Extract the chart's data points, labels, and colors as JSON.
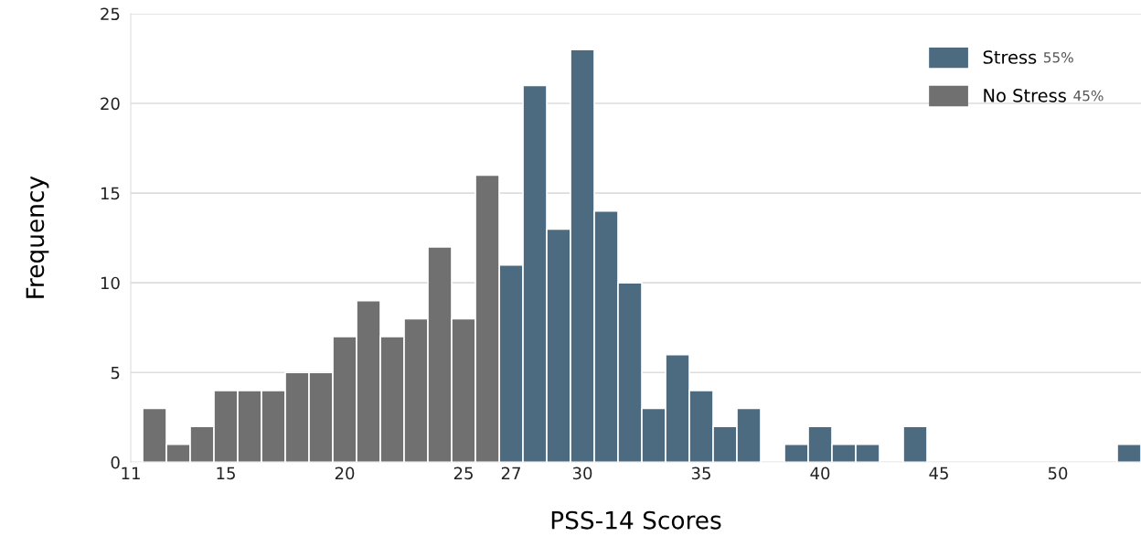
{
  "chart_data": {
    "type": "histogram",
    "xlabel": "PSS-14 Scores",
    "ylabel": "Frequency",
    "bins": [
      11.5,
      12.5,
      13.5,
      14.5,
      15.5,
      16.5,
      17.5,
      18.5,
      19.5,
      20.5,
      21.5,
      22.5,
      23.5,
      24.5,
      25.5,
      26.5,
      27.5,
      28.5,
      29.5,
      30.5,
      31.5,
      32.5,
      33.5,
      34.5,
      35.5,
      36.5,
      37.5,
      38.5,
      39.5,
      40.5,
      41.5,
      42.5,
      43.5,
      44.5,
      45.5,
      46.5,
      47.5,
      48.5,
      49.5,
      50.5,
      51.5,
      52.5,
      53.5
    ],
    "series": [
      {
        "name": "Stress",
        "color": "#4d6b80",
        "values": [
          null,
          null,
          null,
          null,
          null,
          null,
          null,
          null,
          null,
          null,
          null,
          null,
          null,
          null,
          null,
          11,
          21,
          13,
          23,
          14,
          10,
          3,
          6,
          4,
          2,
          3,
          0,
          1,
          2,
          1,
          1,
          0,
          2,
          0,
          0,
          0,
          0,
          0,
          0,
          0,
          0,
          1
        ]
      },
      {
        "name": "No Stress",
        "color": "#707070",
        "values": [
          3,
          1,
          2,
          4,
          4,
          4,
          5,
          5,
          7,
          9,
          7,
          8,
          12,
          8,
          16,
          null,
          null,
          null,
          null,
          null,
          null,
          null,
          null,
          null,
          null,
          null,
          null,
          null,
          null,
          null,
          null,
          null,
          null,
          null,
          null,
          null,
          null,
          null,
          null,
          null,
          null,
          null
        ]
      }
    ],
    "annotations": [
      "55%",
      "45%"
    ],
    "xlim": [
      11,
      53.5
    ],
    "ylim": [
      0,
      25
    ],
    "xticks": [
      11,
      15,
      20,
      25,
      27,
      30,
      35,
      40,
      45,
      50
    ],
    "yticks": [
      0,
      5,
      10,
      15,
      20,
      25
    ],
    "grid": "y",
    "legend": "top right"
  }
}
